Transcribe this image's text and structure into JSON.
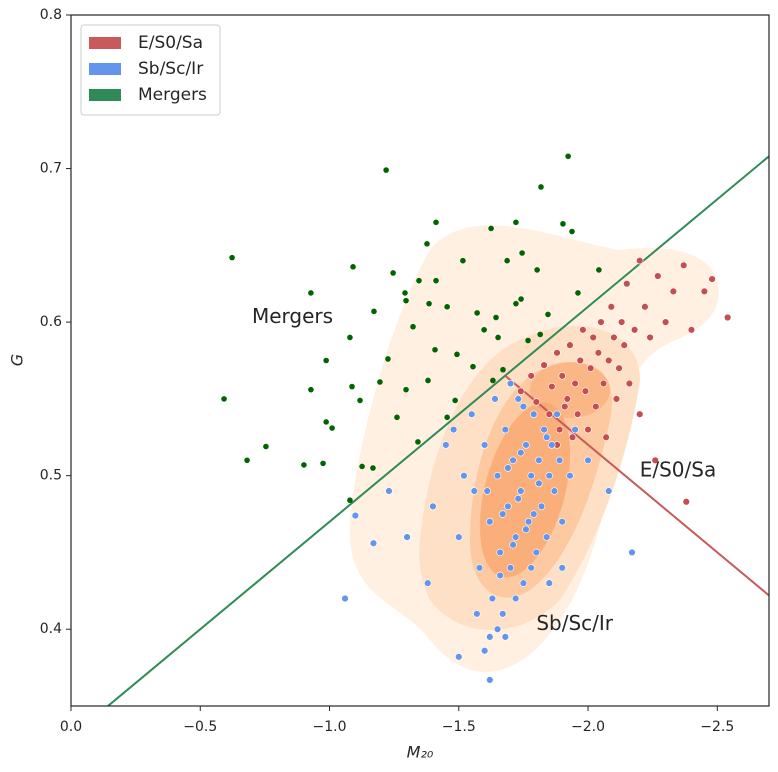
{
  "chart_data": {
    "type": "scatter",
    "x_label": "M₂₀",
    "y_label": "G",
    "xlim": [
      0,
      -2.7
    ],
    "ylim": [
      0.35,
      0.8
    ],
    "xticks": [
      {
        "value": 0,
        "label": "0.0"
      },
      {
        "value": -0.5,
        "label": "−0.5"
      },
      {
        "value": -1.0,
        "label": "−1.0"
      },
      {
        "value": -1.5,
        "label": "−1.5"
      },
      {
        "value": -2.0,
        "label": "−2.0"
      },
      {
        "value": -2.5,
        "label": "−2.5"
      }
    ],
    "yticks": [
      0.4,
      0.5,
      0.6,
      0.7,
      0.8
    ],
    "legend": "upper left",
    "series": [
      {
        "name": "E/S0/Sa",
        "type": "scatter",
        "color": "#c85a5a",
        "marker_color": "#c44e52",
        "x": [
          -1.7,
          -1.74,
          -1.78,
          -1.8,
          -1.83,
          -1.85,
          -1.86,
          -1.88,
          -1.89,
          -1.9,
          -1.92,
          -1.93,
          -1.94,
          -1.95,
          -1.96,
          -1.97,
          -1.98,
          -1.99,
          -2.0,
          -2.01,
          -2.02,
          -2.03,
          -2.04,
          -2.05,
          -2.06,
          -2.07,
          -2.08,
          -2.09,
          -2.1,
          -2.11,
          -2.12,
          -2.13,
          -2.14,
          -2.15,
          -2.16,
          -2.18,
          -2.2,
          -2.2,
          -2.22,
          -2.24,
          -2.26,
          -2.27,
          -2.3,
          -2.33,
          -2.37,
          -2.38,
          -2.4,
          -2.45,
          -2.48,
          -2.54,
          -1.88,
          -1.91
        ],
        "y": [
          0.56,
          0.555,
          0.565,
          0.548,
          0.572,
          0.54,
          0.558,
          0.58,
          0.53,
          0.565,
          0.55,
          0.585,
          0.525,
          0.56,
          0.54,
          0.575,
          0.595,
          0.555,
          0.53,
          0.57,
          0.59,
          0.545,
          0.58,
          0.6,
          0.56,
          0.525,
          0.575,
          0.61,
          0.59,
          0.55,
          0.57,
          0.6,
          0.585,
          0.625,
          0.56,
          0.595,
          0.54,
          0.64,
          0.61,
          0.59,
          0.51,
          0.63,
          0.6,
          0.62,
          0.637,
          0.483,
          0.595,
          0.62,
          0.628,
          0.603,
          0.52,
          0.545
        ]
      },
      {
        "name": "Sb/Sc/Ir",
        "type": "scatter",
        "color": "#6495ed",
        "marker_color": "#6495ed",
        "x": [
          -1.62,
          -1.65,
          -1.66,
          -1.68,
          -1.69,
          -1.7,
          -1.71,
          -1.72,
          -1.73,
          -1.74,
          -1.75,
          -1.76,
          -1.77,
          -1.78,
          -1.79,
          -1.8,
          -1.81,
          -1.82,
          -1.83,
          -1.84,
          -1.85,
          -1.86,
          -1.87,
          -1.88,
          -1.89,
          -1.9,
          -1.6,
          -1.58,
          -1.56,
          -1.55,
          -1.63,
          -1.67,
          -1.72,
          -1.64,
          -1.7,
          -1.75,
          -1.78,
          -1.73,
          -1.76,
          -1.69,
          -1.67,
          -1.74,
          -1.81,
          -1.84,
          -1.79,
          -1.71,
          -1.66,
          -1.61,
          -1.52,
          -1.5,
          -1.48,
          -1.93,
          -1.95,
          -1.57,
          -1.62,
          -1.06,
          -1.1,
          -1.17,
          -1.23,
          -1.3,
          -1.5,
          -1.6,
          -1.62,
          -2.17,
          -2.08,
          -1.38,
          -1.4,
          -1.45,
          -2.0,
          -1.65,
          -1.68,
          -1.85,
          -1.9
        ],
        "y": [
          0.47,
          0.5,
          0.45,
          0.53,
          0.48,
          0.44,
          0.51,
          0.46,
          0.55,
          0.49,
          0.43,
          0.52,
          0.47,
          0.5,
          0.54,
          0.45,
          0.51,
          0.48,
          0.53,
          0.46,
          0.5,
          0.52,
          0.49,
          0.54,
          0.51,
          0.47,
          0.52,
          0.44,
          0.49,
          0.54,
          0.42,
          0.41,
          0.42,
          0.55,
          0.56,
          0.545,
          0.44,
          0.485,
          0.465,
          0.505,
          0.475,
          0.515,
          0.495,
          0.525,
          0.475,
          0.455,
          0.435,
          0.49,
          0.5,
          0.46,
          0.53,
          0.5,
          0.53,
          0.41,
          0.395,
          0.42,
          0.474,
          0.456,
          0.49,
          0.46,
          0.382,
          0.386,
          0.367,
          0.45,
          0.49,
          0.43,
          0.48,
          0.52,
          0.51,
          0.4,
          0.395,
          0.43,
          0.44
        ]
      },
      {
        "name": "Mergers",
        "type": "scatter",
        "color": "#2e8b57",
        "marker_color": "#006400",
        "x": [
          -0.623,
          -1.219,
          -1.923,
          -1.818,
          -1.412,
          -1.721,
          -1.903,
          -1.938,
          -1.377,
          -1.625,
          -1.745,
          -1.687,
          -1.803,
          -2.042,
          -1.516,
          -1.091,
          -1.246,
          -1.346,
          -1.412,
          -0.928,
          -1.292,
          -1.296,
          -1.385,
          -1.455,
          -1.721,
          -1.741,
          -1.845,
          -1.961,
          -1.172,
          -1.571,
          -1.323,
          -1.644,
          -1.079,
          -1.598,
          -1.652,
          -1.768,
          -1.815,
          -1.408,
          -1.493,
          -0.987,
          -1.226,
          -1.555,
          -1.671,
          -0.928,
          -1.087,
          -1.296,
          -1.381,
          -1.195,
          -0.592,
          -1.118,
          -1.455,
          -1.261,
          -1.486,
          -0.987,
          -1.01,
          -1.342,
          -0.754,
          -0.681,
          -0.901,
          -0.975,
          -1.126,
          -1.168,
          -1.079,
          -1.632
        ],
        "y": [
          0.642,
          0.699,
          0.708,
          0.688,
          0.665,
          0.665,
          0.664,
          0.659,
          0.651,
          0.661,
          0.645,
          0.64,
          0.634,
          0.634,
          0.64,
          0.636,
          0.632,
          0.627,
          0.627,
          0.619,
          0.619,
          0.614,
          0.612,
          0.61,
          0.612,
          0.615,
          0.605,
          0.619,
          0.607,
          0.606,
          0.597,
          0.603,
          0.59,
          0.595,
          0.59,
          0.588,
          0.592,
          0.582,
          0.579,
          0.575,
          0.576,
          0.571,
          0.569,
          0.556,
          0.558,
          0.556,
          0.562,
          0.561,
          0.55,
          0.549,
          0.538,
          0.538,
          0.549,
          0.535,
          0.531,
          0.522,
          0.519,
          0.51,
          0.507,
          0.508,
          0.506,
          0.505,
          0.484,
          0.562
        ]
      },
      {
        "type": "line",
        "color": "#2e8b57",
        "x": [
          -0.143,
          -2.7
        ],
        "y": [
          0.35,
          0.708
        ]
      },
      {
        "type": "line",
        "color": "#c85a5a",
        "x": [
          -1.68,
          -2.7
        ],
        "y": [
          0.565,
          0.422
        ]
      }
    ],
    "annotations": [
      {
        "text": "Mergers",
        "x": -0.7,
        "y": 0.603,
        "color": "#006400"
      },
      {
        "text": "E/S0/Sa",
        "x": -2.2,
        "y": 0.503,
        "color": "#c85a5a"
      },
      {
        "text": "Sb/Sc/Ir",
        "x": -1.8,
        "y": 0.403,
        "color": "#6495ed"
      }
    ]
  }
}
